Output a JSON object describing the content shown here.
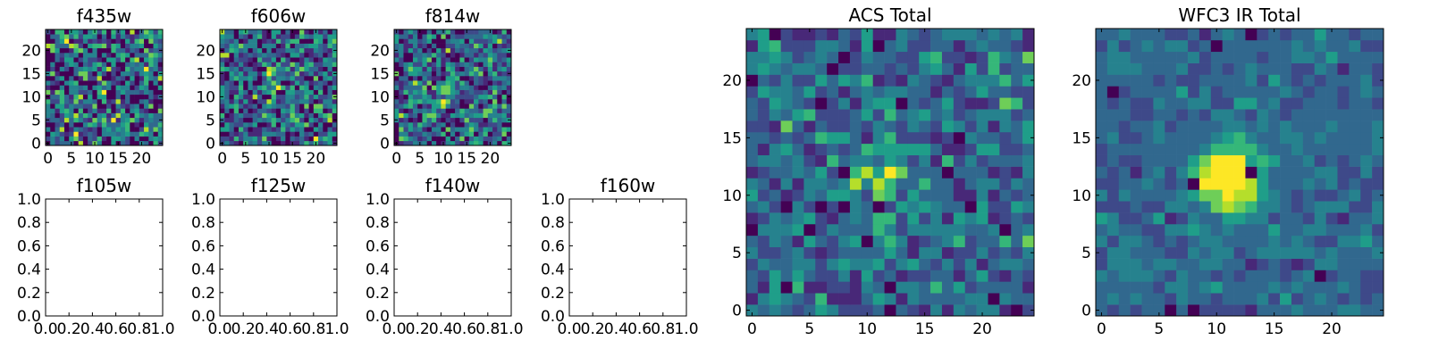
{
  "chart_data": [
    {
      "id": "f435w",
      "type": "heatmap",
      "title": "f435w",
      "size": 25,
      "seed": 11,
      "peak": 0.15,
      "noise": 0.55,
      "dark": 0.1,
      "xticks": [
        0,
        5,
        10,
        15,
        20
      ],
      "yticks": [
        0,
        5,
        10,
        15,
        20
      ],
      "xlim": [
        -0.5,
        24.5
      ],
      "ylim": [
        -0.5,
        24.5
      ]
    },
    {
      "id": "f606w",
      "type": "heatmap",
      "title": "f606w",
      "size": 25,
      "seed": 23,
      "peak": 0.3,
      "noise": 0.5,
      "dark": 0.07,
      "xticks": [
        0,
        5,
        10,
        15,
        20
      ],
      "yticks": [
        0,
        5,
        10,
        15,
        20
      ],
      "xlim": [
        -0.5,
        24.5
      ],
      "ylim": [
        -0.5,
        24.5
      ]
    },
    {
      "id": "f814w",
      "type": "heatmap",
      "title": "f814w",
      "size": 25,
      "seed": 37,
      "peak": 0.35,
      "noise": 0.5,
      "dark": 0.07,
      "xticks": [
        0,
        5,
        10,
        15,
        20
      ],
      "yticks": [
        0,
        5,
        10,
        15,
        20
      ],
      "xlim": [
        -0.5,
        24.5
      ],
      "ylim": [
        -0.5,
        24.5
      ]
    },
    {
      "id": "f105w",
      "type": "empty",
      "title": "f105w",
      "xticks": [
        "0.0",
        "0.2",
        "0.4",
        "0.6",
        "0.8",
        "1.0"
      ],
      "yticks": [
        "0.0",
        "0.2",
        "0.4",
        "0.6",
        "0.8",
        "1.0"
      ],
      "xlim": [
        0,
        1
      ],
      "ylim": [
        0,
        1
      ]
    },
    {
      "id": "f125w",
      "type": "empty",
      "title": "f125w",
      "xticks": [
        "0.0",
        "0.2",
        "0.4",
        "0.6",
        "0.8",
        "1.0"
      ],
      "yticks": [
        "0.0",
        "0.2",
        "0.4",
        "0.6",
        "0.8",
        "1.0"
      ],
      "xlim": [
        0,
        1
      ],
      "ylim": [
        0,
        1
      ]
    },
    {
      "id": "f140w",
      "type": "empty",
      "title": "f140w",
      "xticks": [
        "0.0",
        "0.2",
        "0.4",
        "0.6",
        "0.8",
        "1.0"
      ],
      "yticks": [
        "0.0",
        "0.2",
        "0.4",
        "0.6",
        "0.8",
        "1.0"
      ],
      "xlim": [
        0,
        1
      ],
      "ylim": [
        0,
        1
      ]
    },
    {
      "id": "f160w",
      "type": "empty",
      "title": "f160w",
      "xticks": [
        "0.0",
        "0.2",
        "0.4",
        "0.6",
        "0.8",
        "1.0"
      ],
      "yticks": [
        "0.0",
        "0.2",
        "0.4",
        "0.6",
        "0.8",
        "1.0"
      ],
      "xlim": [
        0,
        1
      ],
      "ylim": [
        0,
        1
      ]
    },
    {
      "id": "acs-total",
      "type": "heatmap",
      "title": "ACS Total",
      "size": 25,
      "seed": 51,
      "peak": 0.3,
      "noise": 0.35,
      "dark": 0.02,
      "xticks": [
        0,
        5,
        10,
        15,
        20
      ],
      "yticks": [
        0,
        5,
        10,
        15,
        20
      ],
      "xlim": [
        -0.5,
        24.5
      ],
      "ylim": [
        -0.5,
        24.5
      ]
    },
    {
      "id": "wfc3-ir-total",
      "type": "heatmap",
      "title": "WFC3 IR Total",
      "size": 25,
      "seed": 67,
      "peak": 0.85,
      "noise": 0.22,
      "dark": 0.01,
      "xticks": [
        0,
        5,
        10,
        15,
        20
      ],
      "yticks": [
        0,
        5,
        10,
        15,
        20
      ],
      "xlim": [
        -0.5,
        24.5
      ],
      "ylim": [
        -0.5,
        24.5
      ]
    }
  ],
  "colormap": [
    "#440154",
    "#482878",
    "#3e4989",
    "#31688e",
    "#26828e",
    "#1f9e89",
    "#35b779",
    "#6ece58",
    "#b5de2b",
    "#fde725"
  ]
}
